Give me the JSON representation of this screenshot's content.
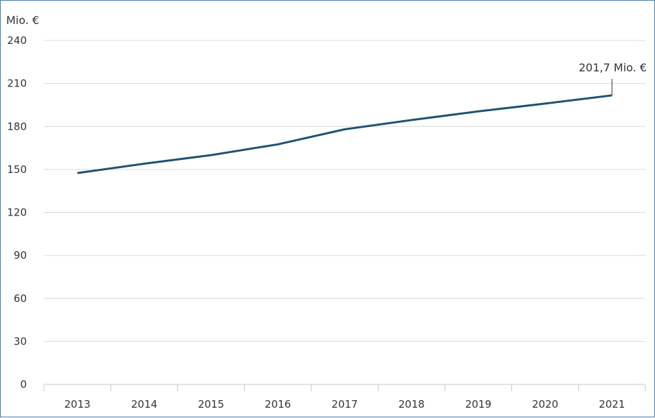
{
  "chart_data": {
    "type": "line",
    "title": "",
    "xlabel": "",
    "ylabel": "Mio. €",
    "categories": [
      "2013",
      "2014",
      "2015",
      "2016",
      "2017",
      "2018",
      "2019",
      "2020",
      "2021"
    ],
    "series": [
      {
        "values": [
          147.5,
          154.0,
          160.0,
          167.5,
          178.0,
          184.5,
          190.5,
          196.0,
          201.7
        ]
      }
    ],
    "ylim": [
      0,
      240
    ],
    "yticks": [
      "0",
      "30",
      "60",
      "90",
      "120",
      "150",
      "180",
      "210",
      "240"
    ],
    "grid": true,
    "legend": "none",
    "annotation": {
      "text": "201,7  Mio. €",
      "category": "2021"
    },
    "colors": {
      "line": "#1f5272",
      "grid": "#d9d9d9",
      "axis": "#c8c8c8",
      "text": "#333333",
      "border": "#4a79a8"
    }
  }
}
